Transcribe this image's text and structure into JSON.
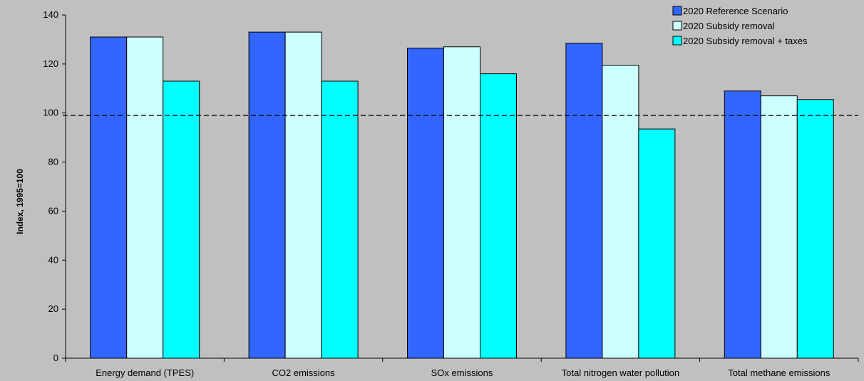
{
  "chart_data": {
    "type": "bar",
    "title": "",
    "xlabel": "",
    "ylabel": "Index, 1995=100",
    "ylim": [
      0,
      140
    ],
    "yticks": [
      0,
      20,
      40,
      60,
      80,
      100,
      120,
      140
    ],
    "grid": false,
    "legend_position": "top-right",
    "reference_line": {
      "value": 99,
      "style": "dashed"
    },
    "categories": [
      "Energy demand (TPES)",
      "CO2 emissions",
      "SOx emissions",
      "Total nitrogen water pollution",
      "Total methane emissions"
    ],
    "series": [
      {
        "name": "2020 Reference Scenario",
        "color": "#3366ff",
        "values": [
          131,
          133,
          126.5,
          128.5,
          109
        ]
      },
      {
        "name": "2020 Subsidy removal",
        "color": "#ccffff",
        "values": [
          131,
          133,
          127,
          119.5,
          107
        ]
      },
      {
        "name": "2020 Subsidy removal + taxes",
        "color": "#00ffff",
        "values": [
          113,
          113,
          116,
          93.5,
          105.5
        ]
      }
    ]
  }
}
